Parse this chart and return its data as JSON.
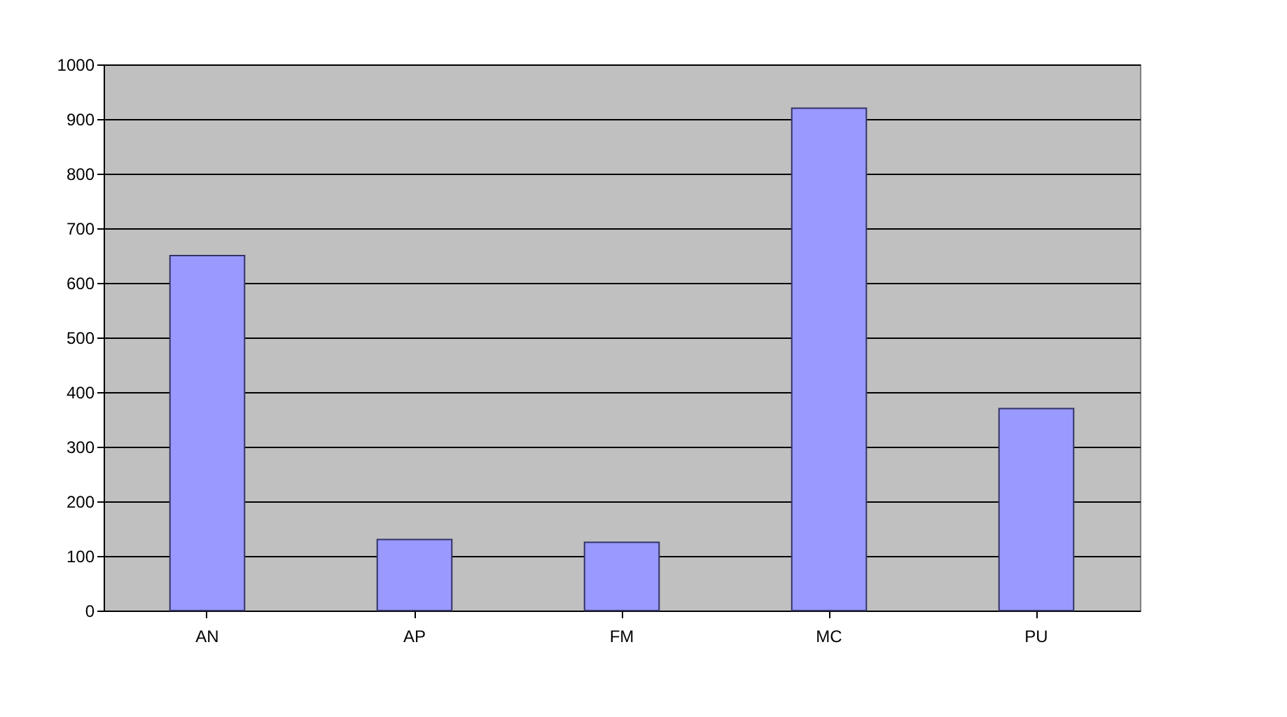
{
  "chart_data": {
    "type": "bar",
    "categories": [
      "AN",
      "AP",
      "FM",
      "MC",
      "PU"
    ],
    "values": [
      650,
      130,
      125,
      920,
      370
    ],
    "color": "#9999ff",
    "ylim": [
      0,
      1000
    ],
    "yticks": [
      0,
      100,
      200,
      300,
      400,
      500,
      600,
      700,
      800,
      900,
      1000
    ],
    "grid": "y"
  }
}
